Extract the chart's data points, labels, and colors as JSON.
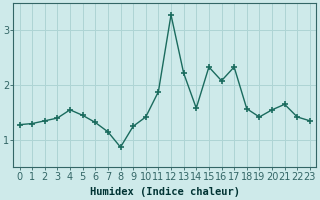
{
  "x": [
    0,
    1,
    2,
    3,
    4,
    5,
    6,
    7,
    8,
    9,
    10,
    11,
    12,
    13,
    14,
    15,
    16,
    17,
    18,
    19,
    20,
    21,
    22,
    23
  ],
  "y": [
    1.28,
    1.3,
    1.35,
    1.4,
    1.55,
    1.45,
    1.32,
    1.15,
    0.87,
    1.25,
    1.42,
    1.88,
    3.28,
    2.22,
    1.58,
    2.33,
    2.08,
    2.33,
    1.57,
    1.42,
    1.55,
    1.65,
    1.42,
    1.35
  ],
  "line_color": "#1a6b5e",
  "marker": "+",
  "marker_size": 5,
  "marker_linewidth": 1.2,
  "linewidth": 1.0,
  "linestyle": "-",
  "xlabel": "Humidex (Indice chaleur)",
  "ylim": [
    0.5,
    3.5
  ],
  "xlim": [
    -0.5,
    23.5
  ],
  "yticks": [
    1,
    2,
    3
  ],
  "xticks": [
    0,
    1,
    2,
    3,
    4,
    5,
    6,
    7,
    8,
    9,
    10,
    11,
    12,
    13,
    14,
    15,
    16,
    17,
    18,
    19,
    20,
    21,
    22,
    23
  ],
  "bg_color": "#ceeaea",
  "grid_color": "#aed4d4",
  "axis_color": "#336666",
  "xlabel_fontsize": 7.5,
  "tick_fontsize": 7,
  "xlabel_fontweight": "bold",
  "xlabel_color": "#003333"
}
